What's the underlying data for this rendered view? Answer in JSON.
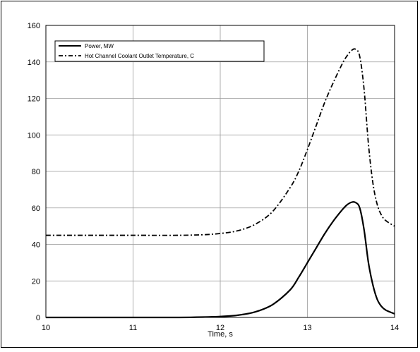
{
  "chart_data": {
    "type": "line",
    "title": "",
    "xlabel": "Time, s",
    "ylabel": "",
    "xlim": [
      10,
      14
    ],
    "ylim": [
      0,
      160
    ],
    "xticks": [
      10,
      11,
      12,
      13,
      14
    ],
    "yticks": [
      0,
      20,
      40,
      60,
      80,
      100,
      120,
      140,
      160
    ],
    "grid": true,
    "legend_position": "top-left",
    "series": [
      {
        "name": "Power, MW",
        "style": "solid",
        "color": "#000000",
        "x": [
          10,
          10.5,
          11,
          11.5,
          11.8,
          12.0,
          12.2,
          12.4,
          12.6,
          12.8,
          12.9,
          13.0,
          13.1,
          13.2,
          13.3,
          13.4,
          13.45,
          13.5,
          13.55,
          13.6,
          13.65,
          13.7,
          13.75,
          13.8,
          13.85,
          13.9,
          14.0
        ],
        "y": [
          0,
          0,
          0,
          0,
          0.2,
          0.5,
          1.2,
          3,
          7,
          15,
          22,
          30,
          38,
          46,
          53,
          59,
          61.5,
          63,
          63,
          60,
          48,
          30,
          18,
          10,
          6,
          4,
          2
        ]
      },
      {
        "name": "Hot Channel Coolant Outlet Temperature, C",
        "style": "dash-dot",
        "color": "#000000",
        "x": [
          10,
          10.5,
          11,
          11.5,
          11.8,
          12.0,
          12.2,
          12.4,
          12.6,
          12.8,
          12.9,
          13.0,
          13.1,
          13.2,
          13.3,
          13.4,
          13.45,
          13.5,
          13.55,
          13.6,
          13.65,
          13.7,
          13.75,
          13.8,
          13.85,
          13.9,
          14.0
        ],
        "y": [
          45,
          45,
          45,
          45,
          45.3,
          46,
          47.5,
          51,
          58,
          71,
          80,
          92,
          105,
          118,
          129,
          139,
          143,
          146,
          147,
          143,
          125,
          95,
          74,
          62,
          56,
          53,
          50
        ]
      }
    ]
  }
}
